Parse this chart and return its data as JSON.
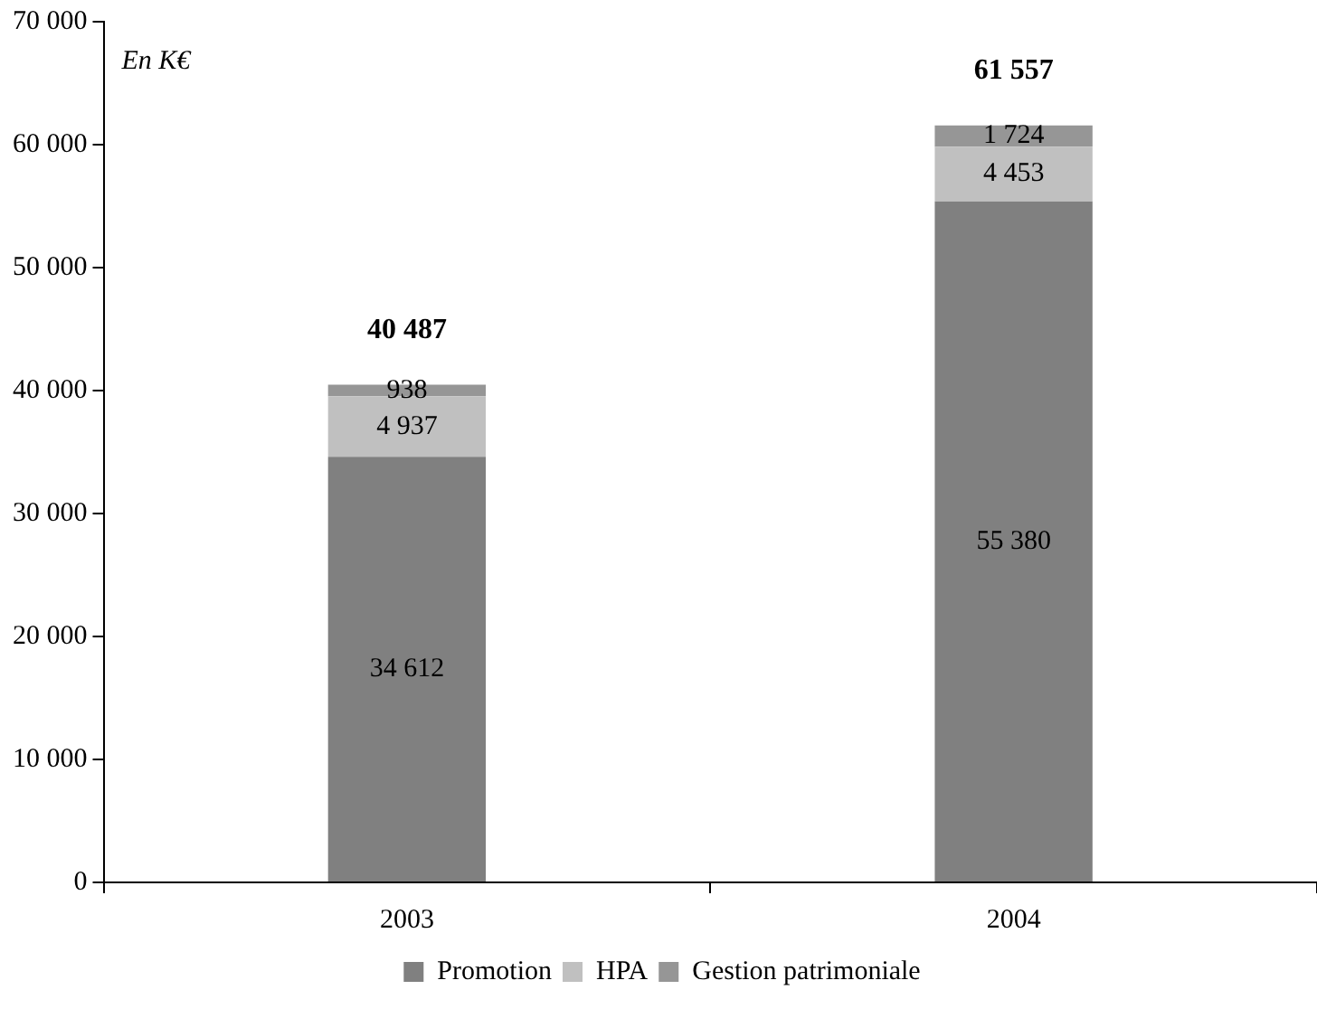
{
  "chart_data": {
    "type": "bar",
    "stacked": true,
    "categories": [
      "2003",
      "2004"
    ],
    "series": [
      {
        "name": "Promotion",
        "color": "#808080",
        "values": [
          34612,
          55380
        ],
        "value_labels": [
          "34 612",
          "55 380"
        ]
      },
      {
        "name": "HPA",
        "color": "#c0c0c0",
        "values": [
          4937,
          4453
        ],
        "value_labels": [
          "4 937",
          "4 453"
        ]
      },
      {
        "name": "Gestion patrimoniale",
        "color": "#969696",
        "values": [
          938,
          1724
        ],
        "value_labels": [
          "938",
          "1 724"
        ]
      }
    ],
    "totals": [
      "40 487",
      "61 557"
    ],
    "ylim": [
      0,
      70000
    ],
    "yticks": [
      {
        "value": 0,
        "label": "0"
      },
      {
        "value": 10000,
        "label": "10 000"
      },
      {
        "value": 20000,
        "label": "20 000"
      },
      {
        "value": 30000,
        "label": "30 000"
      },
      {
        "value": 40000,
        "label": "40 000"
      },
      {
        "value": 50000,
        "label": "50 000"
      },
      {
        "value": 60000,
        "label": "60 000"
      },
      {
        "value": 70000,
        "label": "70 000"
      }
    ],
    "annotations": [
      "En K€"
    ],
    "grid": false,
    "legend": "bottom"
  }
}
